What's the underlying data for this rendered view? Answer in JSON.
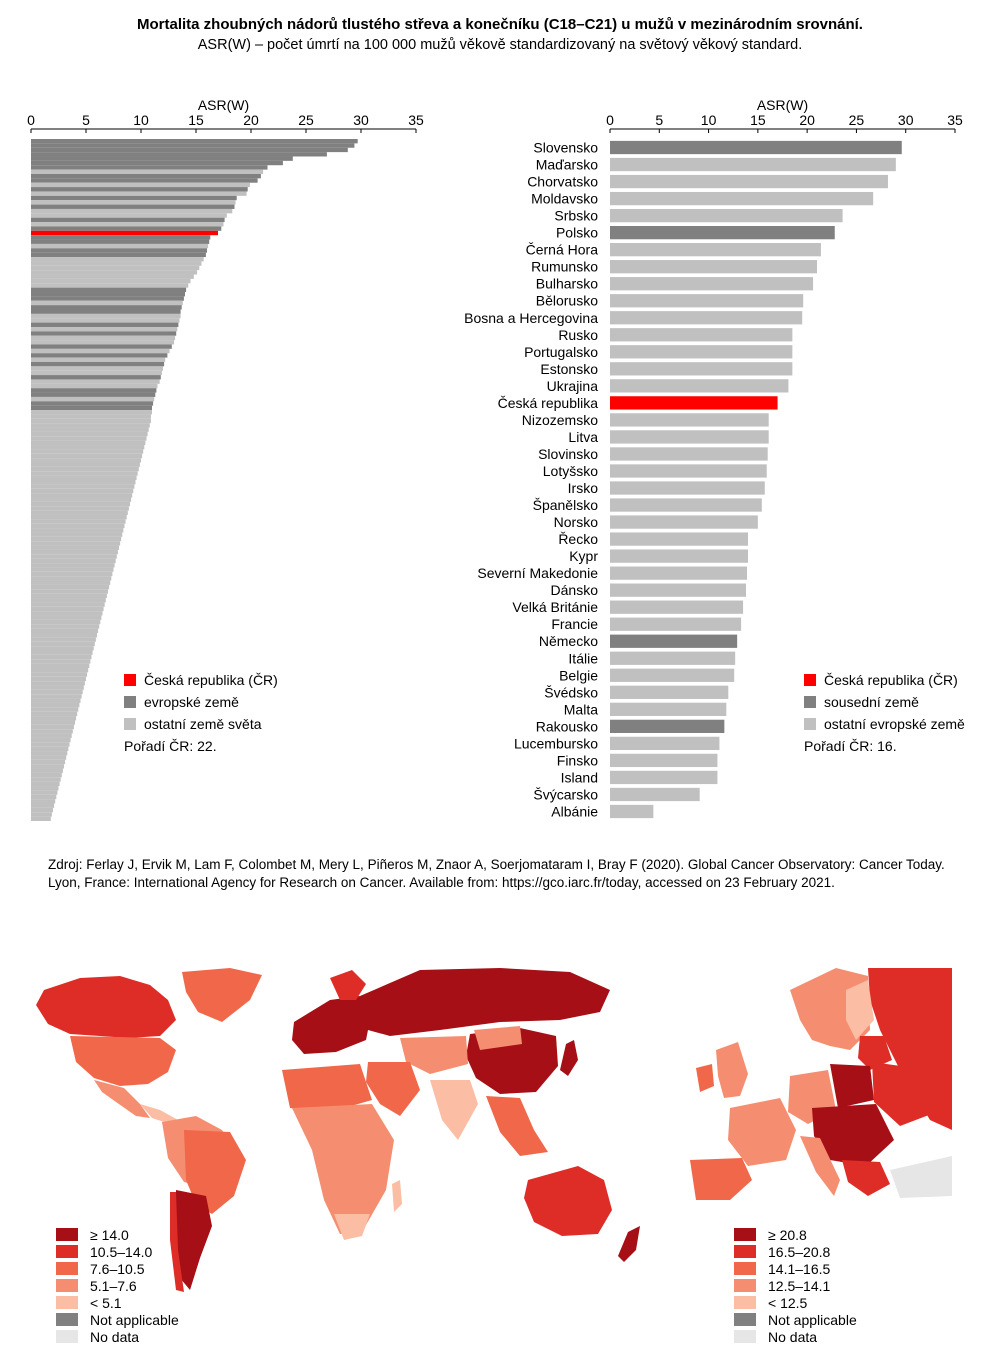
{
  "title": "Mortalita zhoubných nádorů tlustého střeva a konečníku (C18–C21) u mužů v mezinárodním srovnání.",
  "subtitle": "ASR(W) – počet úmrtí na 100 000 mužů věkově standardizovaný na světový věkový standard.",
  "source": "Zdroj: Ferlay J, Ervik M, Lam F, Colombet M, Mery L, Piñeros M, Znaor A, Soerjomataram I, Bray F (2020). Global Cancer Observatory: Cancer Today. Lyon, France: International Agency for Research on Cancer. Available from: https://gco.iarc.fr/today, accessed on 23 February 2021.",
  "colors": {
    "cz": "#ff0000",
    "dark": "#808080",
    "light": "#c0c0c0"
  },
  "chart_data": [
    {
      "type": "bar",
      "orientation": "horizontal",
      "xlabel": "ASR(W)",
      "xlim": [
        0,
        35
      ],
      "ticks": [
        0,
        5,
        10,
        15,
        20,
        25,
        30,
        35
      ],
      "grid": false,
      "legend_position": "bottom-left",
      "legend": [
        {
          "label": "Česká republika (ČR)",
          "color": "#ff0000"
        },
        {
          "label": "evropské země",
          "color": "#808080"
        },
        {
          "label": "ostatní země světa",
          "color": "#c0c0c0"
        }
      ],
      "note": "Pořadí ČR: 22.",
      "values": [
        29.7,
        29.4,
        28.8,
        26.9,
        23.8,
        22.9,
        21.5,
        21.1,
        20.9,
        20.6,
        19.9,
        19.7,
        19.6,
        18.7,
        18.6,
        18.5,
        18.3,
        17.8,
        17.6,
        17.5,
        17.3,
        17.0,
        16.3,
        16.2,
        16.1,
        16.0,
        15.9,
        15.7,
        15.5,
        15.3,
        15.1,
        14.8,
        14.5,
        14.3,
        14.1,
        14.0,
        13.9,
        13.8,
        13.7,
        13.6,
        13.6,
        13.5,
        13.4,
        13.3,
        13.2,
        13.1,
        13.0,
        12.8,
        12.6,
        12.4,
        12.2,
        12.1,
        12.0,
        11.9,
        11.8,
        11.7,
        11.5,
        11.4,
        11.3,
        11.2,
        11.1,
        11.0,
        11.0,
        10.9,
        10.9,
        10.8,
        10.7,
        10.6,
        10.5,
        10.4,
        10.3,
        10.2,
        10.1,
        10.0,
        9.9,
        9.8,
        9.7,
        9.6,
        9.5,
        9.4,
        9.3,
        9.2,
        9.1,
        9.0,
        8.9,
        8.8,
        8.7,
        8.6,
        8.5,
        8.4,
        8.3,
        8.2,
        8.1,
        8.0,
        7.9,
        7.8,
        7.7,
        7.6,
        7.5,
        7.4,
        7.3,
        7.2,
        7.1,
        7.0,
        6.9,
        6.8,
        6.7,
        6.6,
        6.5,
        6.4,
        6.3,
        6.2,
        6.1,
        6.0,
        5.9,
        5.8,
        5.7,
        5.6,
        5.5,
        5.4,
        5.3,
        5.2,
        5.1,
        5.0,
        4.9,
        4.8,
        4.7,
        4.6,
        4.5,
        4.4,
        4.3,
        4.2,
        4.1,
        4.0,
        3.9,
        3.8,
        3.7,
        3.6,
        3.5,
        3.4,
        3.3,
        3.2,
        3.1,
        3.0,
        2.9,
        2.8,
        2.7,
        2.6,
        2.5,
        2.4,
        2.3,
        2.2,
        2.1,
        2.0,
        1.9,
        1.8
      ],
      "groups": [
        "e",
        "e",
        "e",
        "e",
        "e",
        "e",
        "e",
        "o",
        "e",
        "e",
        "o",
        "e",
        "o",
        "e",
        "o",
        "e",
        "o",
        "o",
        "e",
        "o",
        "e",
        "c",
        "e",
        "e",
        "o",
        "e",
        "e",
        "o",
        "o",
        "o",
        "o",
        "o",
        "o",
        "o",
        "e",
        "e",
        "e",
        "o",
        "e",
        "e",
        "o",
        "o",
        "e",
        "o",
        "e",
        "o",
        "o",
        "e",
        "o",
        "e",
        "o",
        "e",
        "o",
        "o",
        "e",
        "o",
        "o",
        "e",
        "e",
        "o",
        "e",
        "e",
        "o",
        "o",
        "o",
        "o",
        "o",
        "o",
        "o",
        "o",
        "o",
        "o",
        "o",
        "o",
        "o",
        "o",
        "o",
        "o",
        "o",
        "o",
        "o",
        "o",
        "o",
        "o",
        "o",
        "o",
        "o",
        "o",
        "o",
        "o",
        "o",
        "o",
        "o",
        "o",
        "o",
        "o",
        "o",
        "o",
        "o",
        "o",
        "o",
        "o",
        "o",
        "o",
        "o",
        "o",
        "o",
        "o",
        "o",
        "o",
        "o",
        "o",
        "o",
        "o",
        "o",
        "o",
        "o",
        "o",
        "o",
        "o",
        "o",
        "o",
        "o",
        "o",
        "o",
        "o",
        "o",
        "o",
        "o",
        "o",
        "o",
        "o",
        "o",
        "o",
        "o",
        "o",
        "o",
        "o",
        "o",
        "o",
        "o",
        "o",
        "o",
        "o",
        "o",
        "o",
        "o",
        "o",
        "o",
        "o",
        "o",
        "o",
        "o",
        "o"
      ]
    },
    {
      "type": "bar",
      "orientation": "horizontal",
      "xlabel": "ASR(W)",
      "xlim": [
        0,
        35
      ],
      "ticks": [
        0,
        5,
        10,
        15,
        20,
        25,
        30,
        35
      ],
      "grid": false,
      "legend_position": "bottom-right",
      "legend": [
        {
          "label": "Česká republika (ČR)",
          "color": "#ff0000"
        },
        {
          "label": "sousední země",
          "color": "#808080"
        },
        {
          "label": "ostatní evropské země",
          "color": "#c0c0c0"
        }
      ],
      "note": "Pořadí ČR: 16.",
      "categories": [
        "Slovensko",
        "Maďarsko",
        "Chorvatsko",
        "Moldavsko",
        "Srbsko",
        "Polsko",
        "Černá Hora",
        "Rumunsko",
        "Bulharsko",
        "Bělorusko",
        "Bosna a Hercegovina",
        "Rusko",
        "Portugalsko",
        "Estonsko",
        "Ukrajina",
        "Česká republika",
        "Nizozemsko",
        "Litva",
        "Slovinsko",
        "Lotyšsko",
        "Irsko",
        "Španělsko",
        "Norsko",
        "Řecko",
        "Kypr",
        "Severní Makedonie",
        "Dánsko",
        "Velká Británie",
        "Francie",
        "Německo",
        "Itálie",
        "Belgie",
        "Švédsko",
        "Malta",
        "Rakousko",
        "Lucembursko",
        "Finsko",
        "Island",
        "Švýcarsko",
        "Albánie"
      ],
      "values": [
        29.6,
        29.0,
        28.2,
        26.7,
        23.6,
        22.8,
        21.4,
        21.0,
        20.6,
        19.6,
        19.5,
        18.5,
        18.5,
        18.5,
        18.1,
        17.0,
        16.1,
        16.1,
        16.0,
        15.9,
        15.7,
        15.4,
        15.0,
        14.0,
        14.0,
        13.9,
        13.8,
        13.5,
        13.3,
        12.9,
        12.7,
        12.6,
        12.0,
        11.8,
        11.6,
        11.1,
        10.9,
        10.9,
        9.1,
        4.4
      ],
      "groups": [
        "n",
        "o",
        "o",
        "o",
        "o",
        "n",
        "o",
        "o",
        "o",
        "o",
        "o",
        "o",
        "o",
        "o",
        "o",
        "c",
        "o",
        "o",
        "o",
        "o",
        "o",
        "o",
        "o",
        "o",
        "o",
        "o",
        "o",
        "o",
        "o",
        "n",
        "o",
        "o",
        "o",
        "o",
        "n",
        "o",
        "o",
        "o",
        "o",
        "o"
      ]
    }
  ],
  "maps": {
    "world_legend": [
      {
        "label": "≥ 14.0",
        "color": "#a50f15"
      },
      {
        "label": "10.5–14.0",
        "color": "#de2d26"
      },
      {
        "label": "7.6–10.5",
        "color": "#f0674a"
      },
      {
        "label": "5.1–7.6",
        "color": "#f58d70"
      },
      {
        "label": "< 5.1",
        "color": "#fbbda4"
      },
      {
        "label": "Not applicable",
        "color": "#808080"
      },
      {
        "label": "No data",
        "color": "#e6e6e6"
      }
    ],
    "europe_legend": [
      {
        "label": "≥ 20.8",
        "color": "#a50f15"
      },
      {
        "label": "16.5–20.8",
        "color": "#de2d26"
      },
      {
        "label": "14.1–16.5",
        "color": "#f0674a"
      },
      {
        "label": "12.5–14.1",
        "color": "#f58d70"
      },
      {
        "label": "< 12.5",
        "color": "#fbbda4"
      },
      {
        "label": "Not applicable",
        "color": "#808080"
      },
      {
        "label": "No data",
        "color": "#e6e6e6"
      }
    ]
  }
}
